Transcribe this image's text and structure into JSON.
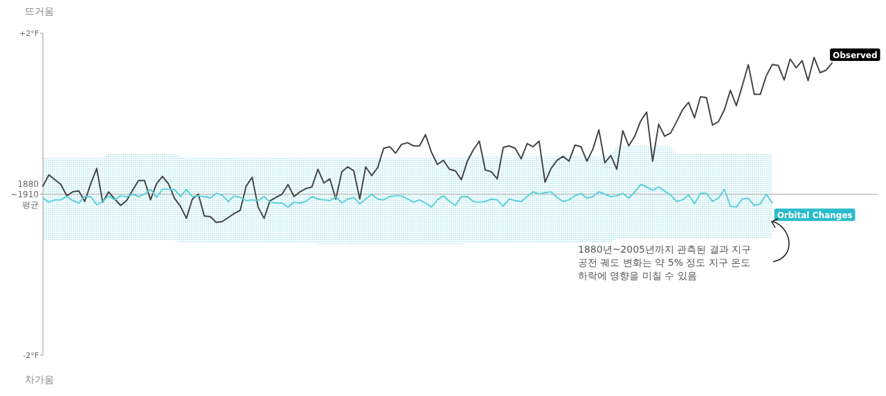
{
  "chart_data": {
    "type": "line",
    "categories": [
      null,
      null,
      null,
      null,
      null,
      null,
      null,
      null,
      null,
      null,
      null,
      null,
      null,
      null,
      null,
      null,
      null,
      null,
      null,
      null,
      null,
      null,
      null,
      null,
      null,
      null,
      null,
      null,
      null,
      null,
      null,
      null,
      null,
      null,
      null,
      null,
      null,
      null,
      null,
      null,
      null,
      null,
      null,
      null,
      null,
      null,
      null,
      null,
      null,
      null,
      null,
      null,
      null,
      null,
      null,
      null,
      null,
      null,
      null,
      null,
      null,
      null,
      null,
      null,
      null,
      null,
      null,
      null,
      null,
      null,
      null,
      null,
      null,
      null,
      null,
      null,
      null,
      null,
      null,
      null,
      null,
      null,
      null,
      null,
      null,
      null,
      null,
      null,
      null,
      null,
      null,
      null,
      null,
      null,
      null,
      null,
      null,
      null,
      null,
      null,
      null,
      null,
      null,
      null,
      null,
      null,
      null,
      null,
      null,
      null,
      null,
      null,
      null,
      null,
      null,
      null,
      null,
      null,
      null,
      null,
      null,
      null,
      null,
      null,
      null,
      null,
      null,
      null,
      null,
      null,
      null,
      null,
      null
    ],
    "series": [
      {
        "name": "Observed",
        "color": "#444444",
        "values": [
          0.1,
          0.24,
          0.18,
          0.12,
          -0.02,
          0.03,
          0.04,
          -0.09,
          0.13,
          0.32,
          -0.1,
          0.03,
          -0.06,
          -0.14,
          -0.08,
          0.05,
          0.17,
          0.17,
          -0.07,
          0.13,
          0.22,
          0.13,
          -0.05,
          -0.15,
          -0.3,
          -0.06,
          0,
          -0.27,
          -0.28,
          -0.35,
          -0.34,
          -0.29,
          -0.24,
          -0.2,
          0.1,
          0.21,
          -0.16,
          -0.3,
          -0.08,
          -0.04,
          0,
          0.12,
          -0.03,
          0.03,
          0.07,
          0.09,
          0.31,
          0.14,
          0.19,
          -0.06,
          0.28,
          0.34,
          0.29,
          -0.06,
          0.34,
          0.23,
          0.33,
          0.57,
          0.59,
          0.51,
          0.62,
          0.64,
          0.6,
          0.6,
          0.74,
          0.52,
          0.37,
          0.42,
          0.31,
          0.29,
          0.18,
          0.41,
          0.55,
          0.66,
          0.3,
          0.28,
          0.19,
          0.58,
          0.6,
          0.57,
          0.44,
          0.63,
          0.59,
          0.66,
          0.15,
          0.32,
          0.42,
          0.47,
          0.41,
          0.61,
          0.59,
          0.41,
          0.56,
          0.8,
          0.39,
          0.48,
          0.31,
          0.79,
          0.6,
          0.72,
          0.91,
          1.02,
          0.41,
          0.87,
          0.72,
          0.76,
          0.9,
          1.05,
          1.14,
          0.95,
          1.21,
          1.2,
          0.86,
          0.9,
          1.05,
          1.29,
          1.1,
          1.35,
          1.61,
          1.24,
          1.24,
          1.47,
          1.61,
          1.6,
          1.42,
          1.68,
          1.57,
          1.66,
          1.41,
          1.7,
          1.51,
          1.54,
          1.63
        ]
      },
      {
        "name": "Orbital Changes",
        "color": "#5ccfdb",
        "values": [
          -0.05,
          -0.1,
          -0.07,
          -0.07,
          -0.03,
          -0.08,
          -0.11,
          -0.03,
          -0.03,
          -0.13,
          -0.09,
          -0.02,
          -0.07,
          -0.02,
          -0.03,
          0,
          -0.03,
          0,
          0.06,
          -0.04,
          0.06,
          0.06,
          0.06,
          -0.03,
          0.06,
          -0.03,
          -0.02,
          -0.03,
          -0.05,
          0.01,
          -0.01,
          -0.09,
          -0.02,
          -0.04,
          -0.08,
          -0.07,
          -0.08,
          -0.03,
          -0.1,
          -0.11,
          -0.11,
          -0.16,
          -0.1,
          -0.11,
          -0.09,
          -0.03,
          -0.06,
          -0.07,
          -0.08,
          -0.03,
          -0.11,
          -0.06,
          -0.04,
          -0.12,
          -0.06,
          0,
          -0.06,
          -0.07,
          -0.03,
          -0.02,
          -0.02,
          -0.06,
          -0.1,
          -0.07,
          -0.11,
          -0.16,
          -0.07,
          -0.02,
          -0.09,
          -0.14,
          -0.03,
          -0.03,
          -0.09,
          -0.1,
          -0.09,
          -0.06,
          -0.07,
          -0.15,
          -0.06,
          -0.08,
          -0.09,
          -0.03,
          0.03,
          0,
          0.02,
          0.03,
          -0.04,
          -0.09,
          -0.07,
          -0.02,
          0.01,
          -0.05,
          -0.03,
          0.03,
          0,
          -0.03,
          -0.02,
          0.01,
          -0.05,
          0.03,
          0.12,
          0.09,
          0.05,
          0.09,
          0.04,
          -0.01,
          -0.09,
          -0.07,
          -0.01,
          -0.12,
          0.01,
          0.01,
          -0.09,
          -0.05,
          0.06,
          -0.15,
          -0.16,
          -0.06,
          -0.05,
          -0.14,
          -0.12,
          0,
          -0.11,
          null,
          null,
          null,
          null,
          null,
          null,
          null,
          null,
          null,
          null
        ],
        "upper": [
          0.45,
          0.45,
          0.45,
          0.45,
          0.45,
          0.45,
          0.45,
          0.45,
          0.45,
          0.45,
          0.45,
          0.5,
          0.5,
          0.5,
          0.5,
          0.5,
          0.5,
          0.5,
          0.5,
          0.5,
          0.5,
          0.5,
          0.5,
          0.46,
          0.46,
          0.46,
          0.46,
          0.46,
          0.46,
          0.46,
          0.46,
          0.46,
          0.46,
          0.46,
          0.46,
          0.46,
          0.46,
          0.46,
          0.46,
          0.46,
          0.46,
          0.46,
          0.46,
          0.46,
          0.46,
          0.46,
          0.45,
          0.45,
          0.45,
          0.45,
          0.45,
          0.45,
          0.45,
          0.45,
          0.45,
          0.45,
          0.45,
          0.45,
          0.45,
          0.45,
          0.45,
          0.45,
          0.45,
          0.45,
          0.45,
          0.45,
          0.45,
          0.45,
          0.45,
          0.45,
          0.45,
          0.47,
          0.47,
          0.47,
          0.47,
          0.47,
          0.47,
          0.47,
          0.47,
          0.47,
          0.47,
          0.47,
          0.47,
          0.47,
          0.47,
          0.47,
          0.47,
          0.47,
          0.47,
          0.47,
          0.47,
          0.47,
          0.47,
          0.47,
          0.47,
          0.47,
          0.6,
          0.6,
          0.6,
          0.6,
          0.6,
          0.6,
          0.6,
          0.6,
          0.6,
          0.6,
          0.5,
          0.5,
          0.5,
          0.5,
          0.5,
          0.5,
          0.5,
          0.5,
          0.5,
          0.5,
          0.5,
          0.5,
          0.5,
          0.5,
          0.5,
          0.5,
          0.5,
          null,
          null,
          null,
          null,
          null,
          null,
          null,
          null,
          null,
          null
        ],
        "lower": [
          -0.57,
          -0.57,
          -0.57,
          -0.57,
          -0.57,
          -0.57,
          -0.57,
          -0.57,
          -0.57,
          -0.57,
          -0.57,
          -0.57,
          -0.57,
          -0.57,
          -0.57,
          -0.57,
          -0.57,
          -0.57,
          -0.57,
          -0.57,
          -0.57,
          -0.57,
          -0.57,
          -0.6,
          -0.6,
          -0.6,
          -0.6,
          -0.6,
          -0.6,
          -0.6,
          -0.6,
          -0.6,
          -0.6,
          -0.6,
          -0.6,
          -0.6,
          -0.6,
          -0.6,
          -0.6,
          -0.6,
          -0.6,
          -0.6,
          -0.6,
          -0.6,
          -0.6,
          -0.6,
          -0.62,
          -0.62,
          -0.62,
          -0.62,
          -0.62,
          -0.62,
          -0.62,
          -0.62,
          -0.62,
          -0.62,
          -0.62,
          -0.62,
          -0.62,
          -0.62,
          -0.62,
          -0.62,
          -0.62,
          -0.62,
          -0.62,
          -0.62,
          -0.62,
          -0.62,
          -0.62,
          -0.62,
          -0.62,
          -0.6,
          -0.6,
          -0.6,
          -0.6,
          -0.6,
          -0.6,
          -0.6,
          -0.6,
          -0.6,
          -0.6,
          -0.6,
          -0.6,
          -0.6,
          -0.6,
          -0.6,
          -0.6,
          -0.6,
          -0.6,
          -0.6,
          -0.6,
          -0.6,
          -0.6,
          -0.6,
          -0.6,
          -0.6,
          -0.55,
          -0.55,
          -0.55,
          -0.55,
          -0.55,
          -0.55,
          -0.55,
          -0.55,
          -0.55,
          -0.55,
          -0.55,
          -0.55,
          -0.55,
          -0.55,
          -0.55,
          -0.55,
          -0.55,
          -0.55,
          -0.55,
          -0.55,
          -0.55,
          -0.55,
          -0.55,
          -0.55,
          -0.55,
          -0.55,
          -0.55,
          null,
          null,
          null,
          null,
          null,
          null,
          null,
          null,
          null,
          null
        ]
      }
    ],
    "ylim": [
      -2,
      2
    ],
    "yticks": [
      {
        "value": 2,
        "label": "+2°F"
      },
      {
        "value": 0,
        "label": "1880\n~1910\n평균"
      },
      {
        "value": -2,
        "label": "-2°F"
      }
    ],
    "ref_lines": [
      {
        "axis": "y",
        "value": 0,
        "color": "#aaaaaa"
      }
    ],
    "grid": false,
    "annotations": [
      "뜨거움",
      "차가움",
      "1880년~2005년까지 관측된 결과 지구 공전 궤도 변화는 약 5% 정도 지구 온도 하락에 영향을 미칠 수 있음"
    ]
  }
}
